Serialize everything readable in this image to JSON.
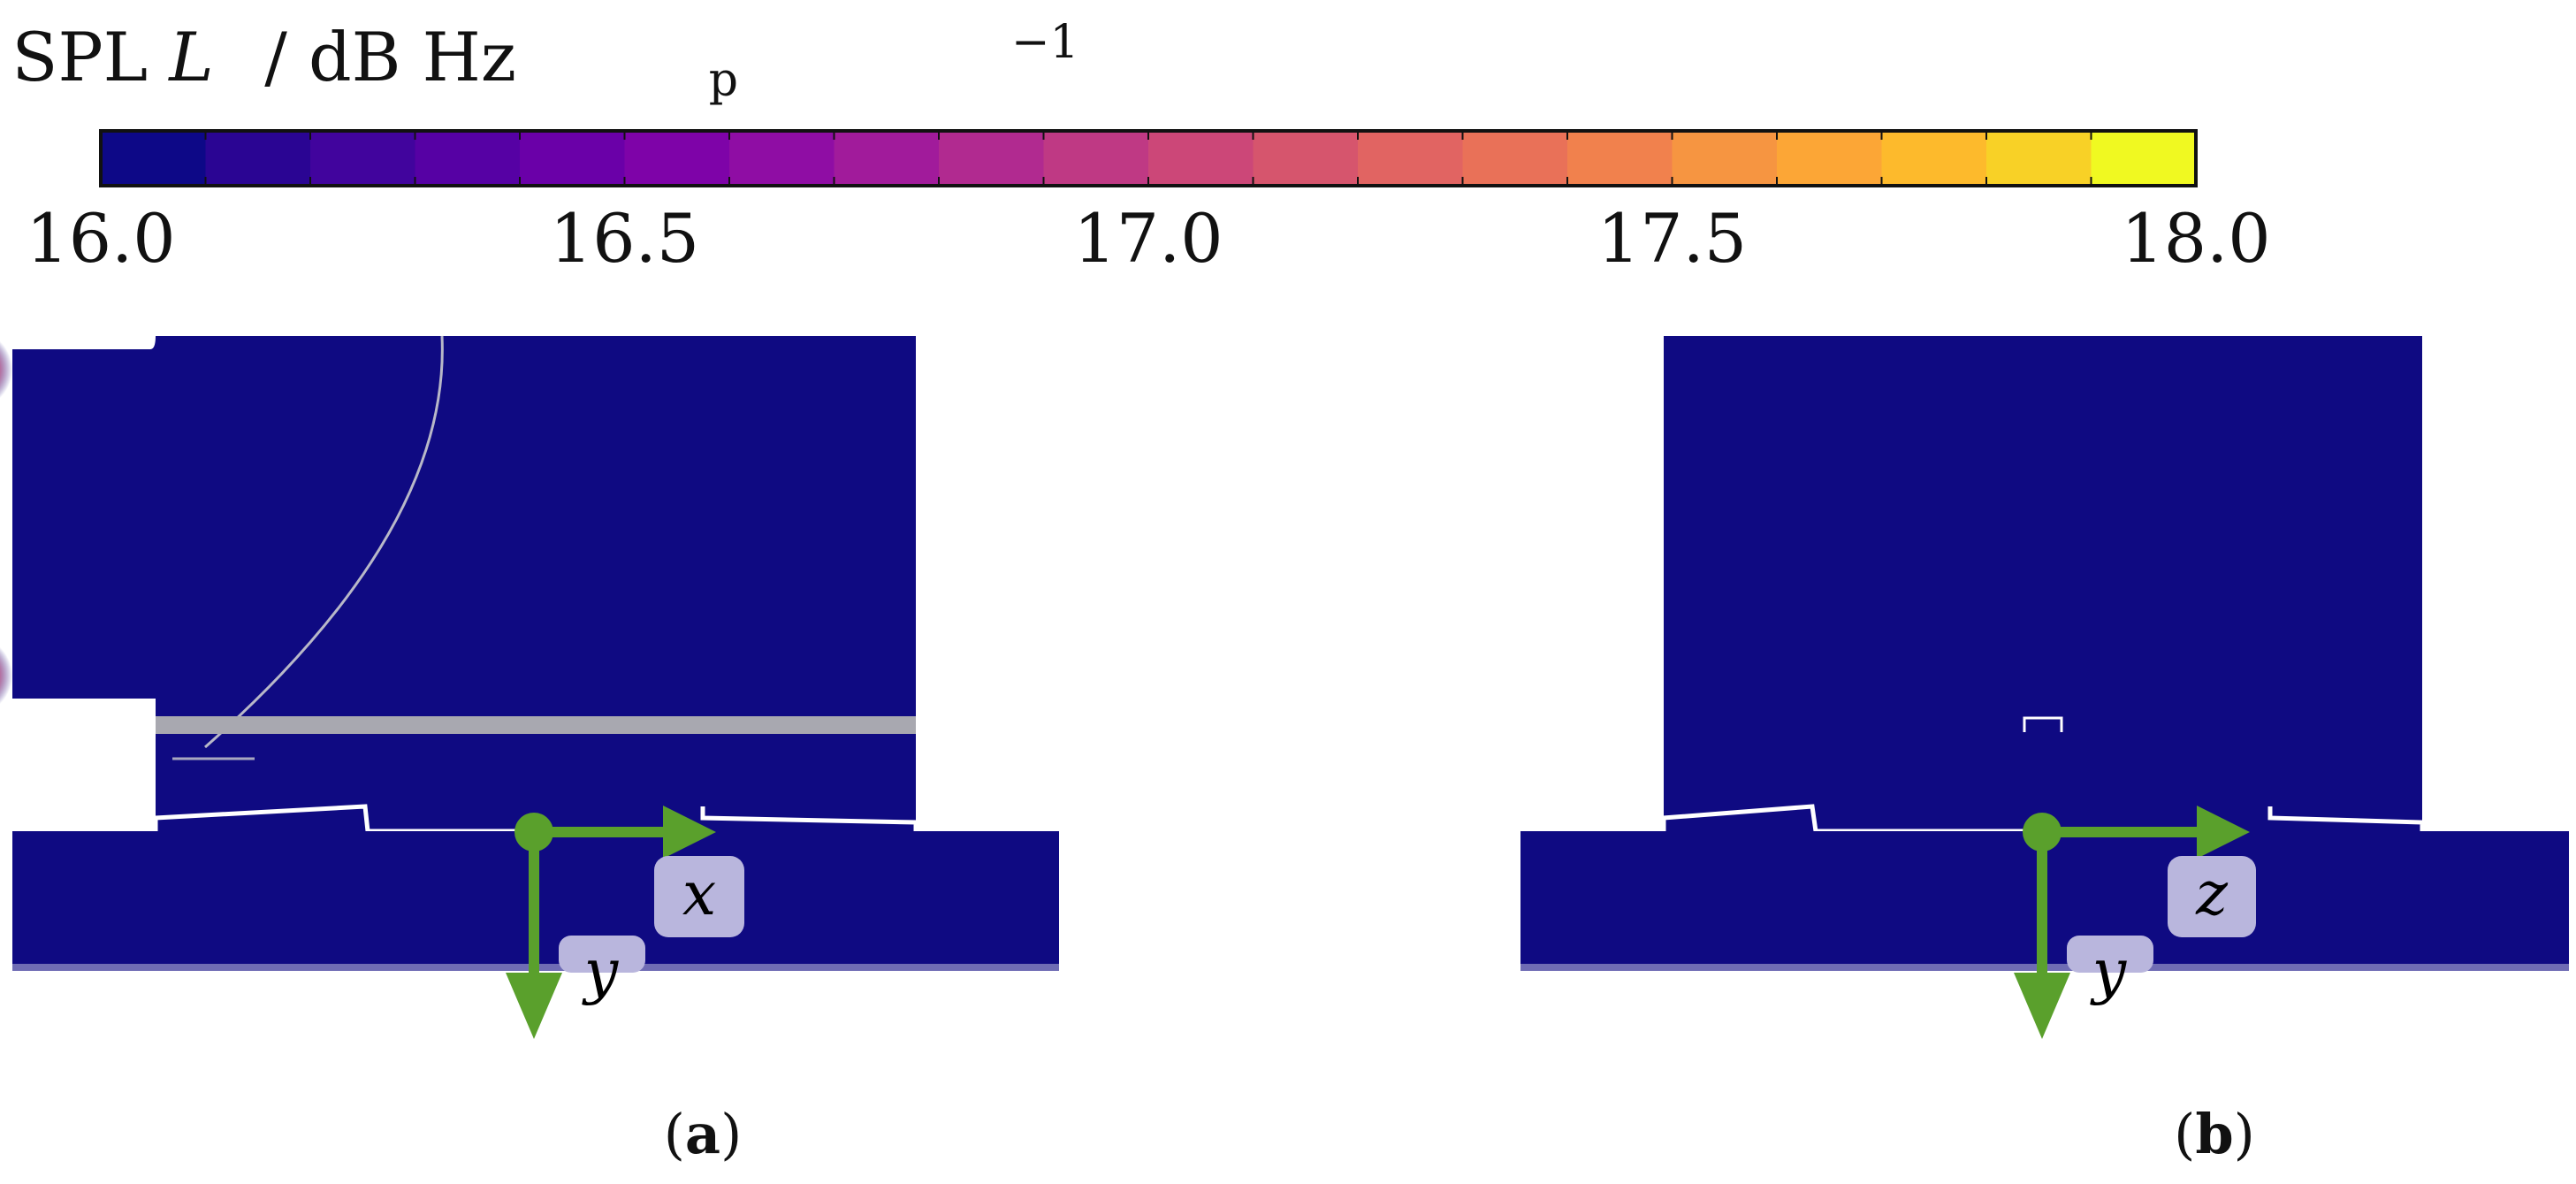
{
  "colorbar": {
    "title_main": "SPL",
    "title_symbol": "L",
    "title_sub": "p",
    "title_unit": "/ dB Hz",
    "title_exp": "−1",
    "range": [
      16.0,
      18.0
    ],
    "ticks": [
      "16.0",
      "16.5",
      "17.0",
      "17.5",
      "18.0"
    ],
    "tick_values": [
      16.0,
      16.5,
      17.0,
      17.5,
      18.0
    ],
    "n_bins": 20,
    "colors": [
      "#0d0887",
      "#2a0593",
      "#41049d",
      "#5601a4",
      "#6a00a8",
      "#7e03a8",
      "#8f0da4",
      "#a11b9b",
      "#b12a90",
      "#bf3984",
      "#cc4778",
      "#d6556d",
      "#e16462",
      "#e97158",
      "#f1814d",
      "#f69541",
      "#fca636",
      "#fdba2c",
      "#f8d126",
      "#f0f921"
    ],
    "field_color": "#0f0a82",
    "hotspot_color": "#f0f921"
  },
  "panels": [
    {
      "id": "a",
      "label": "a",
      "axes": {
        "horizontal": "x",
        "vertical": "y"
      }
    },
    {
      "id": "b",
      "label": "b",
      "axes": {
        "horizontal": "z",
        "vertical": "y"
      }
    }
  ],
  "axis_arrow_color": "#5aa02c",
  "axis_label_bg": "#b9b6dd"
}
